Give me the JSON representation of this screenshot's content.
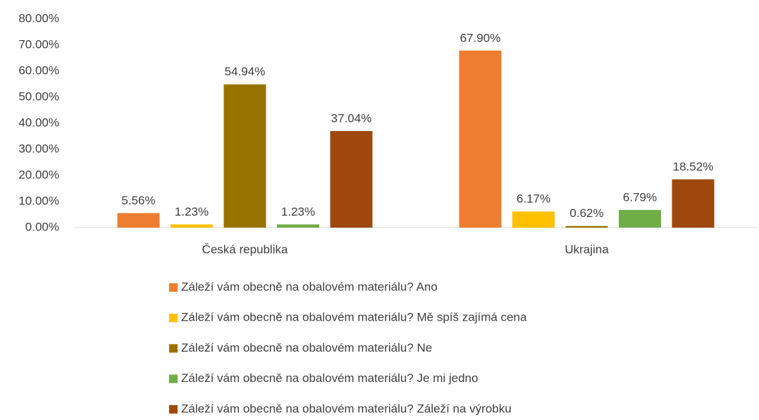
{
  "chart_data": {
    "type": "bar",
    "categories": [
      "Česká republika",
      "Ukrajina"
    ],
    "series": [
      {
        "name": "Záleží vám obecně na obalovém materiálu? Ano",
        "color": "#ed7d31",
        "values": [
          5.56,
          67.9
        ],
        "value_labels": [
          "5.56%",
          "67.90%"
        ]
      },
      {
        "name": "Záleží vám obecně na obalovém materiálu? Mě spíš zajímá cena",
        "color": "#ffc000",
        "values": [
          1.23,
          6.17
        ],
        "value_labels": [
          "1.23%",
          "6.17%"
        ]
      },
      {
        "name": "Záleží vám obecně na obalovém materiálu? Ne",
        "color": "#997300",
        "values": [
          54.94,
          0.62
        ],
        "value_labels": [
          "54.94%",
          "0.62%"
        ]
      },
      {
        "name": "Záleží vám obecně na obalovém materiálu? Je mi jedno",
        "color": "#70ad47",
        "values": [
          1.23,
          6.79
        ],
        "value_labels": [
          "1.23%",
          "6.79%"
        ]
      },
      {
        "name": "Záleží vám obecně na obalovém materiálu? Záleží na výrobku",
        "color": "#9e480e",
        "values": [
          37.04,
          18.52
        ],
        "value_labels": [
          "37.04%",
          "18.52%"
        ]
      }
    ],
    "ylim": [
      0,
      80
    ],
    "yticks": [
      {
        "value": 0,
        "label": "0.00%"
      },
      {
        "value": 10,
        "label": "10.00%"
      },
      {
        "value": 20,
        "label": "20.00%"
      },
      {
        "value": 30,
        "label": "30.00%"
      },
      {
        "value": 40,
        "label": "40.00%"
      },
      {
        "value": 50,
        "label": "50.00%"
      },
      {
        "value": 60,
        "label": "60.00%"
      },
      {
        "value": 70,
        "label": "70.00%"
      },
      {
        "value": 80,
        "label": "80.00%"
      }
    ],
    "grid": false,
    "legend": "bottom"
  }
}
